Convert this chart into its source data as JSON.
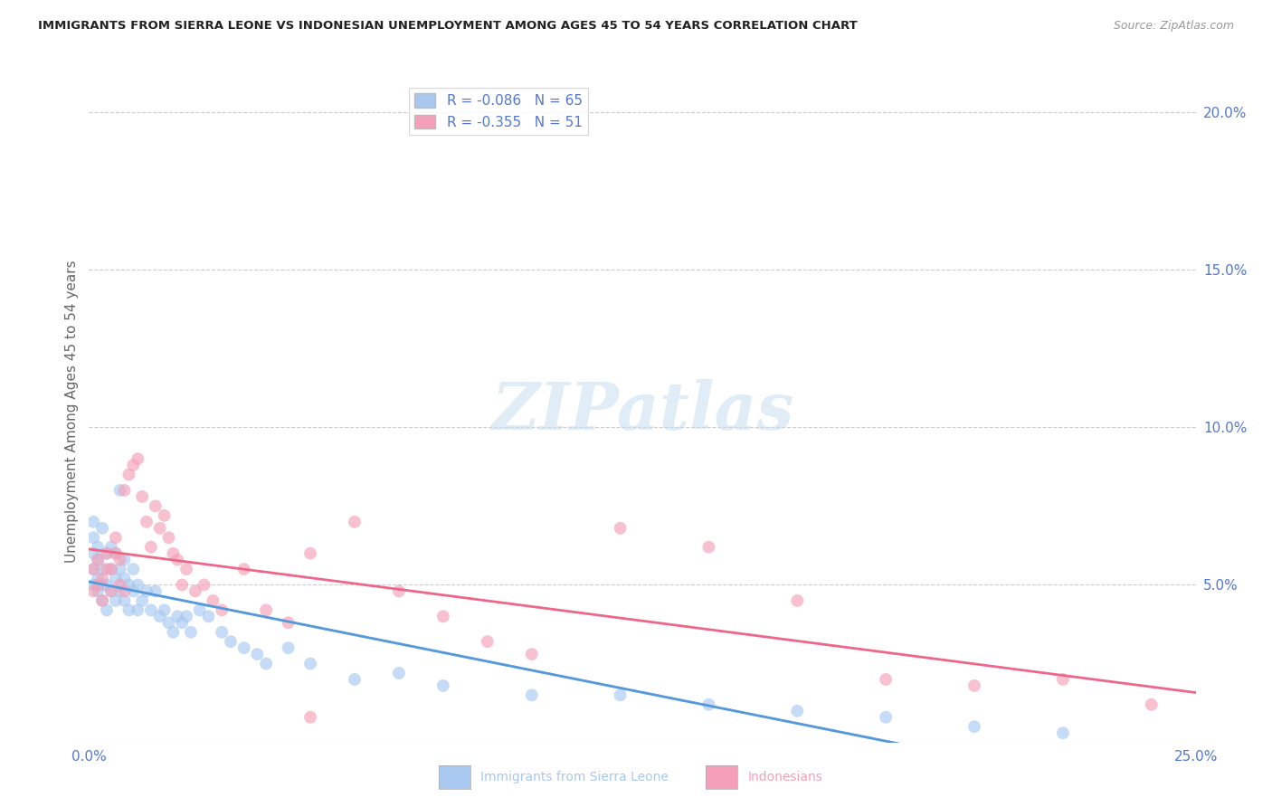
{
  "title": "IMMIGRANTS FROM SIERRA LEONE VS INDONESIAN UNEMPLOYMENT AMONG AGES 45 TO 54 YEARS CORRELATION CHART",
  "source": "Source: ZipAtlas.com",
  "ylabel": "Unemployment Among Ages 45 to 54 years",
  "xlim": [
    0.0,
    0.25
  ],
  "ylim": [
    0.0,
    0.21
  ],
  "y_ticks_right": [
    0.05,
    0.1,
    0.15,
    0.2
  ],
  "y_tick_labels_right": [
    "5.0%",
    "10.0%",
    "15.0%",
    "20.0%"
  ],
  "legend1_label": "R = -0.086   N = 65",
  "legend2_label": "R = -0.355   N = 51",
  "legend_color1": "#A8C8F0",
  "legend_color2": "#F5A0B8",
  "line_color1": "#5599DD",
  "line_color2": "#EE6688",
  "line_dashed_color": "#AACCEE",
  "tick_color": "#5577CC",
  "watermark_text": "ZIPatlas",
  "blue_scatter_x": [
    0.001,
    0.001,
    0.001,
    0.001,
    0.001,
    0.002,
    0.002,
    0.002,
    0.002,
    0.003,
    0.003,
    0.003,
    0.003,
    0.004,
    0.004,
    0.004,
    0.005,
    0.005,
    0.005,
    0.006,
    0.006,
    0.006,
    0.007,
    0.007,
    0.007,
    0.008,
    0.008,
    0.008,
    0.009,
    0.009,
    0.01,
    0.01,
    0.011,
    0.011,
    0.012,
    0.013,
    0.014,
    0.015,
    0.016,
    0.017,
    0.018,
    0.019,
    0.02,
    0.021,
    0.022,
    0.023,
    0.025,
    0.027,
    0.03,
    0.032,
    0.035,
    0.038,
    0.04,
    0.045,
    0.05,
    0.06,
    0.07,
    0.08,
    0.1,
    0.12,
    0.14,
    0.16,
    0.18,
    0.2,
    0.22
  ],
  "blue_scatter_y": [
    0.05,
    0.055,
    0.06,
    0.065,
    0.07,
    0.048,
    0.052,
    0.058,
    0.062,
    0.045,
    0.05,
    0.055,
    0.068,
    0.042,
    0.05,
    0.06,
    0.048,
    0.055,
    0.062,
    0.045,
    0.052,
    0.06,
    0.048,
    0.055,
    0.08,
    0.045,
    0.052,
    0.058,
    0.042,
    0.05,
    0.048,
    0.055,
    0.042,
    0.05,
    0.045,
    0.048,
    0.042,
    0.048,
    0.04,
    0.042,
    0.038,
    0.035,
    0.04,
    0.038,
    0.04,
    0.035,
    0.042,
    0.04,
    0.035,
    0.032,
    0.03,
    0.028,
    0.025,
    0.03,
    0.025,
    0.02,
    0.022,
    0.018,
    0.015,
    0.015,
    0.012,
    0.01,
    0.008,
    0.005,
    0.003
  ],
  "pink_scatter_x": [
    0.001,
    0.001,
    0.002,
    0.002,
    0.003,
    0.003,
    0.004,
    0.004,
    0.005,
    0.005,
    0.006,
    0.006,
    0.007,
    0.007,
    0.008,
    0.008,
    0.009,
    0.01,
    0.011,
    0.012,
    0.013,
    0.014,
    0.015,
    0.016,
    0.017,
    0.018,
    0.019,
    0.02,
    0.021,
    0.022,
    0.024,
    0.026,
    0.028,
    0.03,
    0.035,
    0.04,
    0.045,
    0.05,
    0.06,
    0.07,
    0.08,
    0.09,
    0.1,
    0.12,
    0.14,
    0.16,
    0.18,
    0.2,
    0.22,
    0.24,
    0.05
  ],
  "pink_scatter_y": [
    0.048,
    0.055,
    0.05,
    0.058,
    0.045,
    0.052,
    0.055,
    0.06,
    0.048,
    0.055,
    0.06,
    0.065,
    0.05,
    0.058,
    0.048,
    0.08,
    0.085,
    0.088,
    0.09,
    0.078,
    0.07,
    0.062,
    0.075,
    0.068,
    0.072,
    0.065,
    0.06,
    0.058,
    0.05,
    0.055,
    0.048,
    0.05,
    0.045,
    0.042,
    0.055,
    0.042,
    0.038,
    0.06,
    0.07,
    0.048,
    0.04,
    0.032,
    0.028,
    0.068,
    0.062,
    0.045,
    0.02,
    0.018,
    0.02,
    0.012,
    0.008
  ]
}
